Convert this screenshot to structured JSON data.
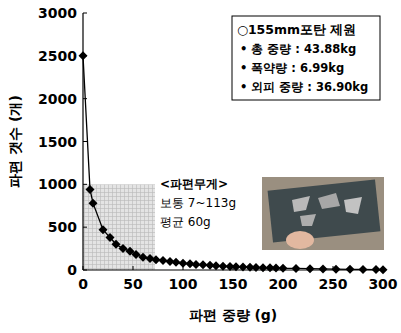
{
  "chart_data": {
    "type": "line",
    "x_label": "파편 중량 (g)",
    "y_label": "파편 갯수 (개)",
    "x": [
      0,
      7,
      10,
      20,
      27,
      33,
      40,
      47,
      53,
      60,
      67,
      73,
      80,
      87,
      93,
      100,
      107,
      113,
      120,
      127,
      133,
      140,
      147,
      153,
      160,
      167,
      173,
      180,
      187,
      193,
      200,
      213,
      227,
      240,
      253,
      267,
      280,
      293,
      300
    ],
    "values": [
      2500,
      940,
      780,
      470,
      380,
      300,
      250,
      220,
      180,
      150,
      135,
      120,
      110,
      100,
      90,
      80,
      72,
      65,
      60,
      55,
      50,
      45,
      42,
      38,
      35,
      32,
      30,
      27,
      25,
      22,
      20,
      18,
      15,
      12,
      10,
      8,
      7,
      5,
      4
    ],
    "color": "#000000",
    "marker": "diamond",
    "xlim": [
      0,
      300
    ],
    "xticks": [
      0,
      50,
      100,
      150,
      200,
      250,
      300
    ],
    "ylim": [
      0,
      3000
    ],
    "yticks": [
      0,
      500,
      1000,
      1500,
      2000,
      2500,
      3000
    ],
    "grid": false,
    "highlight": {
      "x": [
        0,
        72
      ],
      "y": [
        0,
        1000
      ]
    },
    "spec_box": [
      "○155mm포탄 제원",
      "• 총 중량 : 43.88kg",
      "• 폭약량 : 6.99kg",
      "• 외피 중량 : 36.90kg"
    ],
    "annotation": [
      "<파편무게>",
      "보통 7~113g",
      "평균 60g"
    ]
  }
}
